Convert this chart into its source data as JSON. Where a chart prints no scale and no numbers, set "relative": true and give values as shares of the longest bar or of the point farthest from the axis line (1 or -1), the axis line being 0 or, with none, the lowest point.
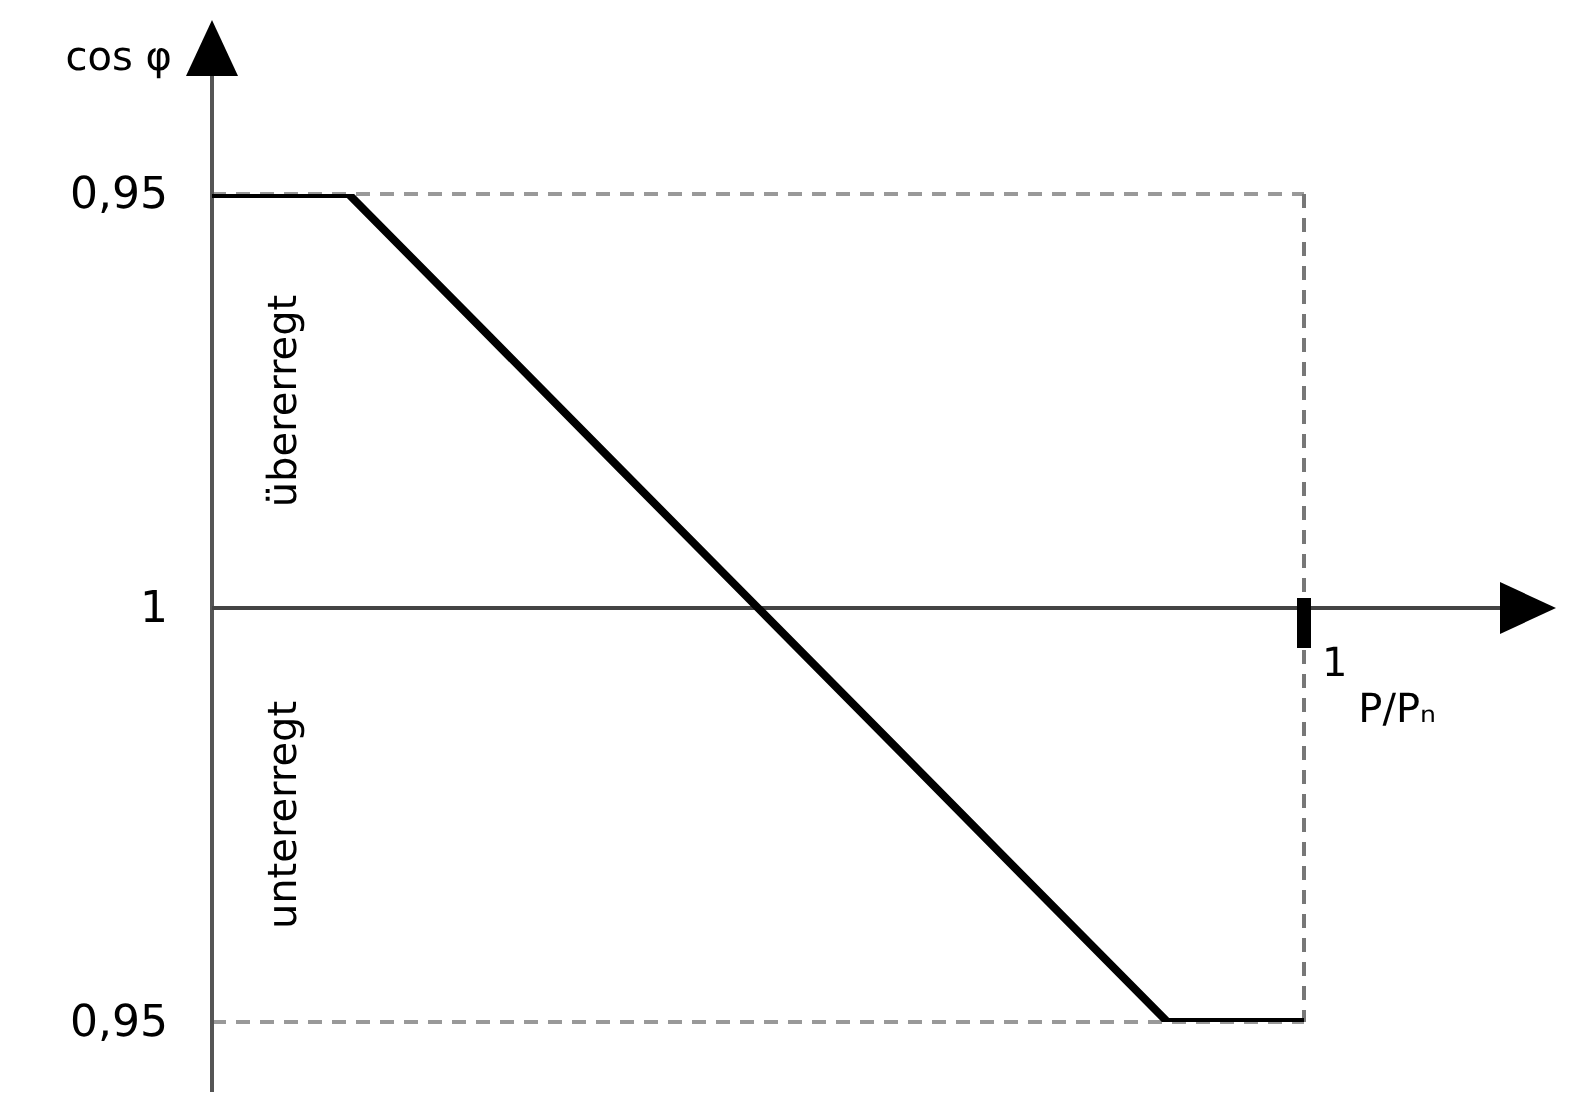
{
  "chart_data": {
    "type": "line",
    "relative": true,
    "xlabel": "P/Pₙ",
    "ylabel": "cos φ",
    "categories": [
      null,
      null,
      null,
      null,
      null,
      null,
      null,
      null,
      null
    ],
    "series": [
      {
        "color": "#000000",
        "values": [
          1,
          1,
          0.667,
          0.333,
          0,
          -0.333,
          -0.667,
          -1,
          -1
        ]
      }
    ],
    "ref_lines": [
      {
        "axis": "y",
        "value": 1,
        "color": "#999999",
        "line_style": "dashed"
      },
      {
        "axis": "y",
        "value": -1,
        "color": "#999999",
        "line_style": "dashed"
      }
    ],
    "annotations": [
      "0,95",
      "1",
      "0,95",
      "1",
      "übererregt",
      "untererregt"
    ],
    "marker": "none",
    "line_style": "solid"
  }
}
